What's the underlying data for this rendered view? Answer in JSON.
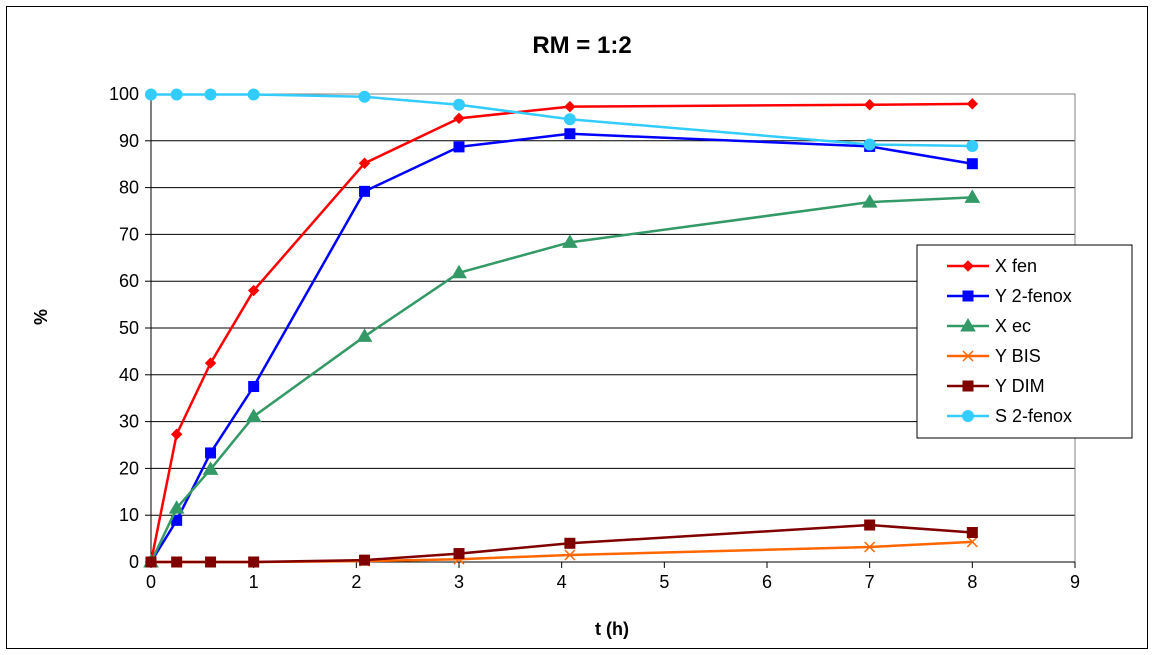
{
  "chart_data": {
    "type": "line",
    "title": "RM = 1:2",
    "xlabel": "t (h)",
    "ylabel": "%",
    "xlim": [
      0,
      9
    ],
    "ylim": [
      0,
      100
    ],
    "xticks": [
      0,
      1,
      2,
      3,
      4,
      5,
      6,
      7,
      8,
      9
    ],
    "yticks": [
      0,
      10,
      20,
      30,
      40,
      50,
      60,
      70,
      80,
      90,
      100
    ],
    "grid": "horizontal",
    "legend_position": "right",
    "series": [
      {
        "name": "X fen",
        "color": "#ff0000",
        "marker": "diamond",
        "x": [
          0,
          0.25,
          0.58,
          1,
          2.08,
          3,
          4.08,
          7,
          8
        ],
        "y": [
          0,
          27.3,
          42.5,
          58,
          85.2,
          94.8,
          97.3,
          97.7,
          97.9
        ]
      },
      {
        "name": "Y 2-fenox",
        "color": "#0000ff",
        "marker": "square",
        "x": [
          0,
          0.25,
          0.58,
          1,
          2.08,
          3,
          4.08,
          7,
          8
        ],
        "y": [
          0,
          8.9,
          23.3,
          37.5,
          79.2,
          88.7,
          91.5,
          88.8,
          85.1
        ]
      },
      {
        "name": "X ec",
        "color": "#339966",
        "marker": "triangle",
        "x": [
          0,
          0.25,
          0.58,
          1,
          2.08,
          3,
          4.08,
          7,
          8
        ],
        "y": [
          0,
          11.5,
          19.8,
          31.1,
          48.2,
          61.8,
          68.3,
          76.9,
          77.9
        ]
      },
      {
        "name": "Y BIS",
        "color": "#ff6600",
        "marker": "x",
        "x": [
          0,
          0.25,
          0.58,
          1,
          2.08,
          3,
          4.08,
          7,
          8
        ],
        "y": [
          0,
          0,
          0,
          0,
          0.2,
          0.6,
          1.5,
          3.2,
          4.3
        ]
      },
      {
        "name": "Y DIM",
        "color": "#800000",
        "marker": "square",
        "x": [
          0,
          0.25,
          0.58,
          1,
          2.08,
          3,
          4.08,
          7,
          8
        ],
        "y": [
          0,
          0,
          0,
          0,
          0.4,
          1.8,
          4,
          7.9,
          6.3
        ]
      },
      {
        "name": "S 2-fenox",
        "color": "#33ccff",
        "marker": "circle",
        "x": [
          0,
          0.25,
          0.58,
          1,
          2.08,
          3,
          4.08,
          7,
          8
        ],
        "y": [
          99.9,
          99.9,
          99.9,
          99.9,
          99.4,
          97.7,
          94.6,
          89.2,
          88.9
        ]
      }
    ]
  }
}
